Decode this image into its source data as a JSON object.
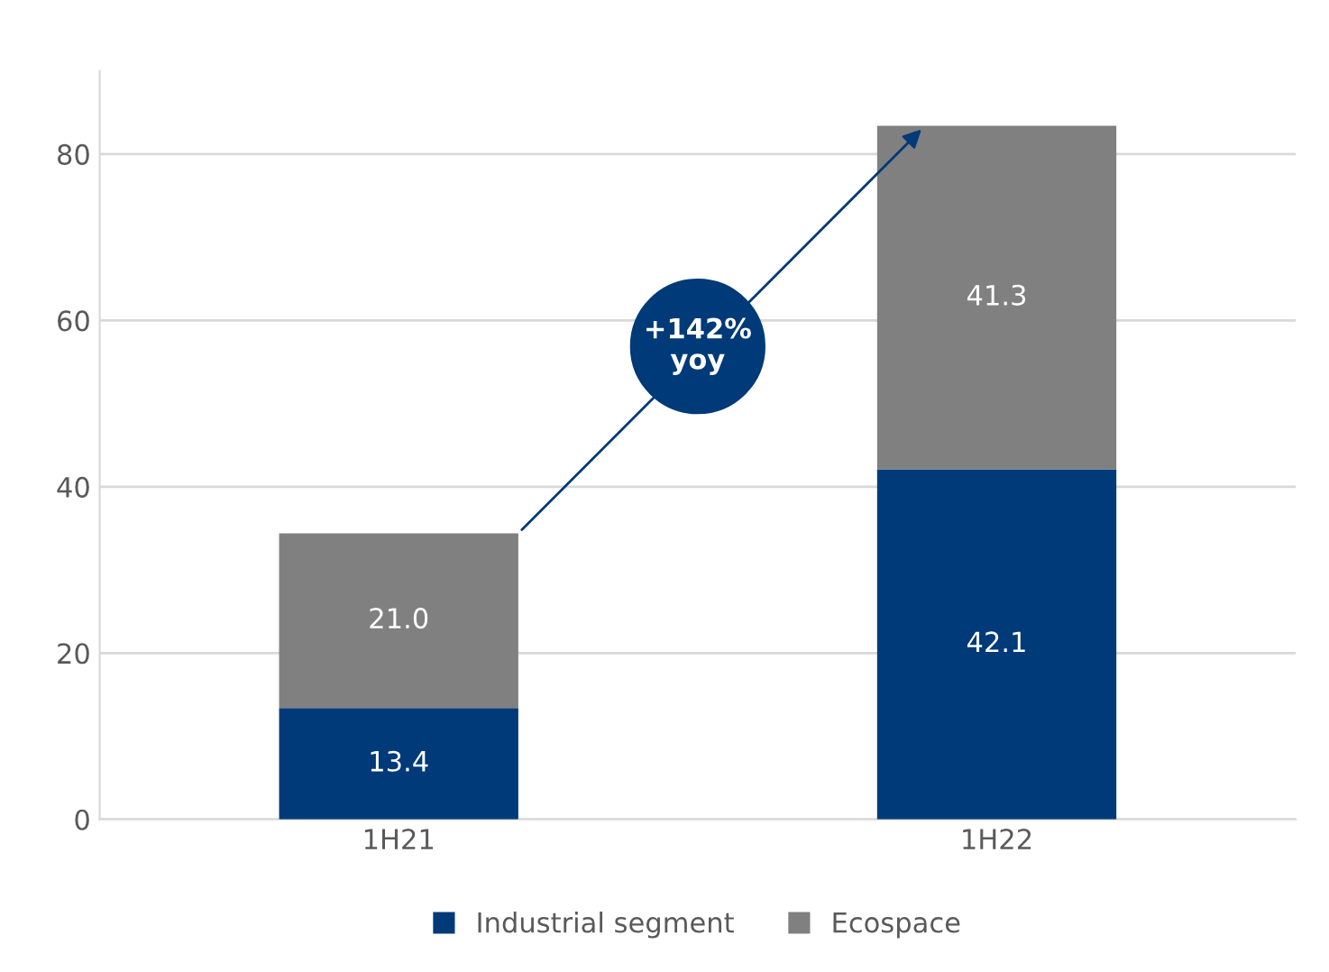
{
  "chart_data": {
    "type": "bar",
    "stacked": true,
    "categories": [
      "1H21",
      "1H22"
    ],
    "series": [
      {
        "name": "Industrial segment",
        "color": "#003a78",
        "values": [
          13.4,
          42.1
        ],
        "value_labels": [
          "13.4",
          "42.1"
        ]
      },
      {
        "name": "Ecospace",
        "color": "#808080",
        "values": [
          21.0,
          41.3
        ],
        "value_labels": [
          "21.0",
          "41.3"
        ]
      }
    ],
    "ylim": [
      0,
      90
    ],
    "yticks": [
      0,
      20,
      40,
      60,
      80
    ],
    "grid": "y",
    "legend": "bottom",
    "annotations": [
      "+142%\nyoy"
    ]
  }
}
